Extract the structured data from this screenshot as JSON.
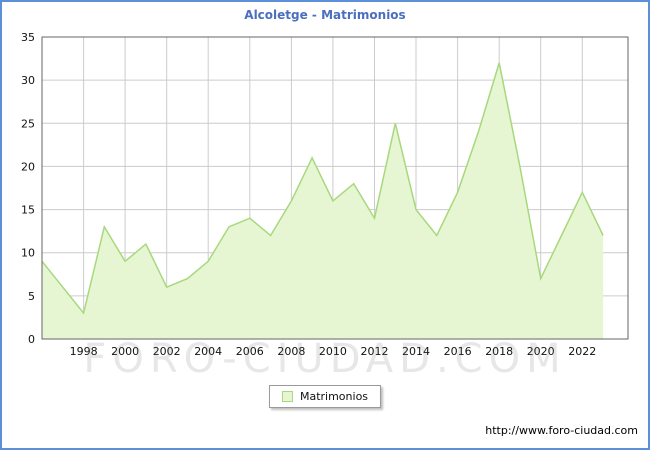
{
  "title": {
    "text": "Alcoletge - Matrimonios",
    "color": "#4a6fbe"
  },
  "legend": {
    "label": "Matrimonios"
  },
  "watermark": {
    "text": "FORO-CIUDAD.COM"
  },
  "footer": {
    "url": "http://www.foro-ciudad.com"
  },
  "chart_data": {
    "type": "area",
    "title": "Alcoletge - Matrimonios",
    "xlabel": "",
    "ylabel": "",
    "x": [
      1996,
      1997,
      1998,
      1999,
      2000,
      2001,
      2002,
      2003,
      2004,
      2005,
      2006,
      2007,
      2008,
      2009,
      2010,
      2011,
      2012,
      2013,
      2014,
      2015,
      2016,
      2017,
      2018,
      2019,
      2020,
      2021,
      2022,
      2023
    ],
    "values": [
      9,
      6,
      3,
      13,
      9,
      11,
      6,
      7,
      9,
      13,
      14,
      12,
      16,
      21,
      16,
      18,
      14,
      25,
      15,
      12,
      17,
      24,
      32,
      20,
      7,
      12,
      17,
      12
    ],
    "series_name": "Matrimonios",
    "ylim": [
      0,
      35
    ],
    "xlim": [
      1996,
      2024.2
    ],
    "yticks": [
      0,
      5,
      10,
      15,
      20,
      25,
      30,
      35
    ],
    "xticks": [
      1998,
      2000,
      2002,
      2004,
      2006,
      2008,
      2010,
      2012,
      2014,
      2016,
      2018,
      2020,
      2022
    ],
    "grid": true,
    "legend_position": "bottom-center",
    "line_color": "#a8d87e",
    "fill_color": "#e6f6d2",
    "grid_color": "#cccccc",
    "plot_border_color": "#666666",
    "tick_label_color": "#111111"
  }
}
